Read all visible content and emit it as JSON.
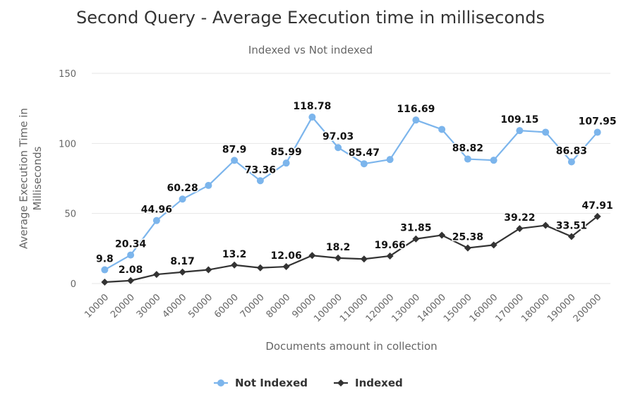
{
  "chart_data": {
    "type": "line",
    "title": "Second Query - Average Execution time in milliseconds",
    "subtitle": "Indexed vs Not indexed",
    "xlabel": "Documents amount in collection",
    "ylabel": "Average Execution Time in Milliseconds",
    "ylim": [
      0,
      150
    ],
    "yticks": [
      0,
      50,
      100,
      150
    ],
    "grid": true,
    "legend": "bottom-center",
    "categories": [
      "10000",
      "20000",
      "30000",
      "40000",
      "50000",
      "60000",
      "70000",
      "80000",
      "90000",
      "100000",
      "110000",
      "120000",
      "130000",
      "140000",
      "150000",
      "160000",
      "170000",
      "180000",
      "190000",
      "200000"
    ],
    "series": [
      {
        "name": "Not Indexed",
        "color": "#7cb5ec",
        "marker": "circle",
        "values": [
          9.8,
          20.34,
          44.96,
          60.28,
          70,
          87.9,
          73.36,
          85.99,
          118.78,
          97.03,
          85.47,
          88.5,
          116.69,
          110,
          88.82,
          88,
          109.15,
          108,
          86.83,
          107.95
        ],
        "labels": [
          "9.8",
          "20.34",
          "44.96",
          "60.28",
          "",
          "87.9",
          "73.36",
          "85.99",
          "118.78",
          "97.03",
          "85.47",
          "",
          "116.69",
          "",
          "88.82",
          "",
          "109.15",
          "",
          "86.83",
          "107.95"
        ]
      },
      {
        "name": "Indexed",
        "color": "#333333",
        "marker": "diamond",
        "values": [
          1,
          2.08,
          6.5,
          8.17,
          9.8,
          13.2,
          11.2,
          12.06,
          20,
          18.2,
          17.5,
          19.66,
          31.85,
          34.5,
          25.38,
          27.5,
          39.22,
          41.5,
          33.51,
          47.91
        ],
        "labels": [
          "",
          "2.08",
          "",
          "8.17",
          "",
          "13.2",
          "",
          "12.06",
          "",
          "18.2",
          "",
          "19.66",
          "31.85",
          "",
          "25.38",
          "",
          "39.22",
          "",
          "33.51",
          "47.91"
        ]
      }
    ]
  }
}
